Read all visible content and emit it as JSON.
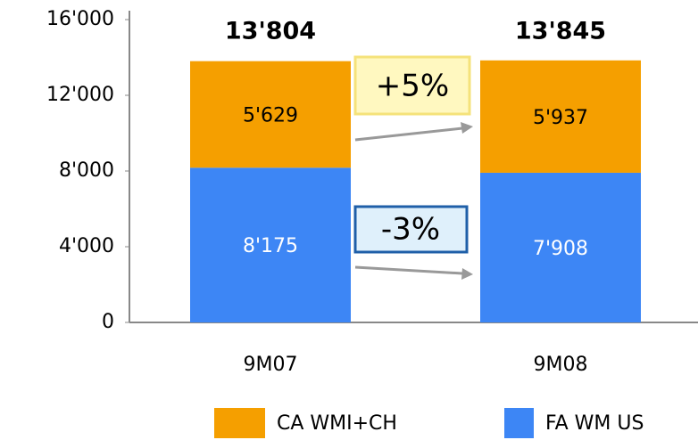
{
  "chart_data": {
    "type": "stacked_bar",
    "categories": [
      "9M07",
      "9M08"
    ],
    "series": [
      {
        "name": "FA WM US",
        "color": "#3d86f5",
        "values": [
          8175,
          7908
        ],
        "value_labels": [
          "8'175",
          "7'908"
        ]
      },
      {
        "name": "CA WMI+CH",
        "color": "#f59f00",
        "values": [
          5629,
          5937
        ],
        "value_labels": [
          "5'629",
          "5'937"
        ]
      }
    ],
    "totals": [
      13804,
      13845
    ],
    "total_labels": [
      "13'804",
      "13'845"
    ],
    "annotations": [
      "+5%",
      "-3%"
    ],
    "ylim": [
      0,
      16000
    ],
    "yticks": [
      0,
      {
        "value": 4000,
        "label": "4'000"
      },
      {
        "value": 8000,
        "label": "8'000"
      },
      {
        "value": 12000,
        "label": "12'000"
      },
      {
        "value": 16000,
        "label": "16'000"
      }
    ],
    "grid": false
  }
}
